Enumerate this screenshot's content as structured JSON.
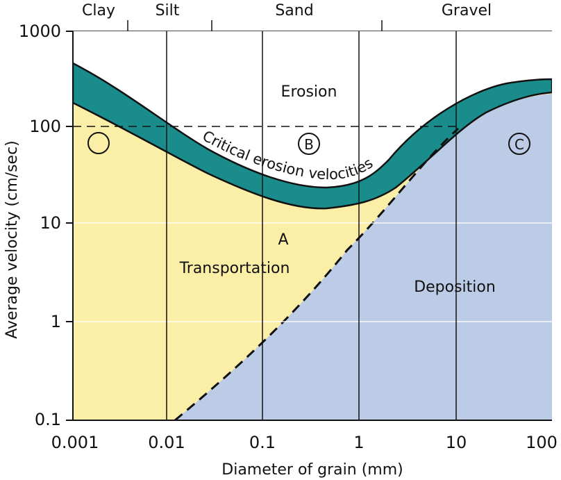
{
  "grain_classes": [
    "Clay",
    "Silt",
    "Sand",
    "Gravel"
  ],
  "x_axis": {
    "label": "Diameter of grain (mm)",
    "ticks": [
      "0.001",
      "0.01",
      "0.1",
      "1",
      "10",
      "100"
    ],
    "scale": "log",
    "range": [
      0.001,
      100
    ]
  },
  "y_axis": {
    "label": "Average velocity (cm/sec)",
    "ticks": [
      "0.1",
      "1",
      "10",
      "100",
      "1000"
    ],
    "scale": "log",
    "range": [
      0.1,
      1000
    ]
  },
  "regions": {
    "erosion": "Erosion",
    "transportation": "Transportation",
    "deposition": "Deposition"
  },
  "curve_label": "Critical erosion velocities",
  "markers": {
    "a": "A",
    "b": "B",
    "c": "C"
  },
  "colors": {
    "erosion_band": "#1b8c8c",
    "transportation": "#fbeea6",
    "deposition": "#bccbe6",
    "line": "#111111"
  }
}
